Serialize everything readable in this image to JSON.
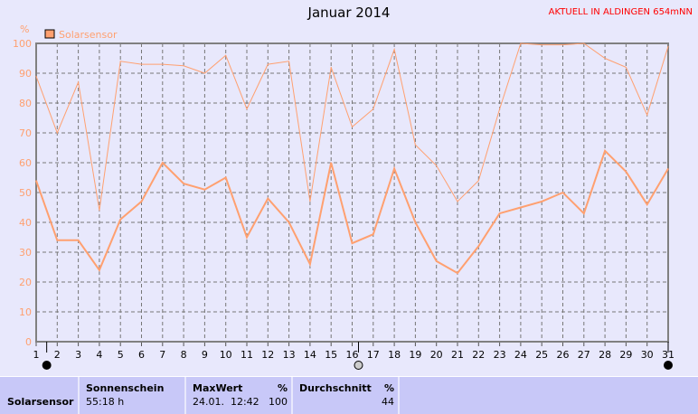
{
  "header": {
    "title": "Januar 2014",
    "banner": "AKTUELL IN ALDINGEN 654mNN"
  },
  "chart_data": {
    "type": "line",
    "title": "Januar 2014",
    "ylabel": "%",
    "ylim": [
      0,
      100
    ],
    "yticks": [
      0,
      10,
      20,
      30,
      40,
      50,
      60,
      70,
      80,
      90,
      100
    ],
    "x": [
      1,
      2,
      3,
      4,
      5,
      6,
      7,
      8,
      9,
      10,
      11,
      12,
      13,
      14,
      15,
      16,
      17,
      18,
      19,
      20,
      21,
      22,
      23,
      24,
      25,
      26,
      27,
      28,
      29,
      30,
      31
    ],
    "grid": true,
    "legend": {
      "position": "top-left",
      "entries": [
        "Solarsensor"
      ]
    },
    "color": "#ffa070",
    "series": [
      {
        "values": [
          89,
          70,
          87,
          44,
          94,
          93,
          93,
          92.5,
          90,
          96,
          78,
          93,
          94,
          47,
          92,
          72,
          78,
          98,
          66,
          59,
          47,
          54,
          78,
          100,
          99.5,
          99.5,
          100,
          95,
          92,
          76,
          99
        ]
      },
      {
        "values": [
          54,
          34,
          34,
          24,
          41,
          47,
          60,
          53,
          51,
          55,
          35,
          48,
          40,
          26,
          60,
          33,
          36,
          58,
          40,
          27,
          23,
          32,
          43,
          45,
          47,
          50,
          43,
          64,
          57,
          46,
          58
        ]
      }
    ],
    "moon_phases": [
      {
        "day": 1.5,
        "phase": "new-moon"
      },
      {
        "day": 16.3,
        "phase": "full-moon"
      },
      {
        "day": 31,
        "phase": "new-moon"
      }
    ]
  },
  "footer": {
    "row_label": "Solarsensor",
    "sunshine": {
      "label": "Sonnenschein",
      "value": "55:18 h"
    },
    "max": {
      "label": "MaxWert",
      "unit": "%",
      "date": "24.01.  12:42",
      "value": "100"
    },
    "avg": {
      "label": "Durchschnitt",
      "unit": "%",
      "value": "44"
    }
  }
}
